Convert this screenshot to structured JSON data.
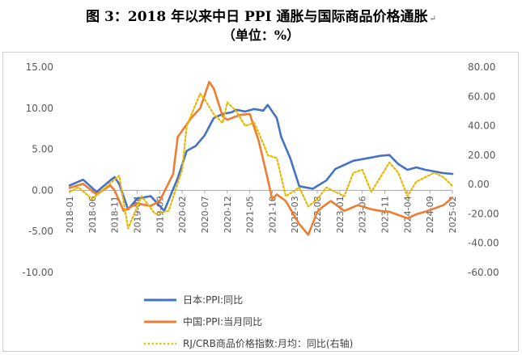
{
  "title": "图 3：2018 年以来中日 PPI 通胀与国际商品价格通胀",
  "subtitle": "（单位：%）",
  "chart_data": {
    "type": "line",
    "title": "图 3：2018 年以来中日 PPI 通胀与国际商品价格通胀",
    "subtitle": "（单位：%）",
    "x_tick_labels": [
      "2018-01",
      "2018-06",
      "2018-11",
      "2019-04",
      "2019-09",
      "2020-02",
      "2020-07",
      "2020-12",
      "2021-05",
      "2021-10",
      "2022-03",
      "2022-08",
      "2023-01",
      "2023-06",
      "2023-11",
      "2024-04",
      "2024-09",
      "2025-02"
    ],
    "y_left": {
      "ylim": [
        -10,
        15
      ],
      "ticks": [
        "15.00",
        "10.00",
        "5.00",
        "0.00",
        "-5.00",
        "-10.00"
      ]
    },
    "y_right": {
      "ylim": [
        -60,
        80
      ],
      "ticks": [
        "80.00",
        "60.00",
        "40.00",
        "20.00",
        "0.00",
        "-20.00",
        "-40.00",
        "-60.00"
      ]
    },
    "grid": false,
    "legend_position": "bottom-left",
    "series": [
      {
        "name": "日本:PPI:同比",
        "axis": "left",
        "color": "#4472C4",
        "x": [
          "2018-01",
          "2018-04",
          "2018-07",
          "2018-10",
          "2018-11",
          "2018-12",
          "2019-02",
          "2019-04",
          "2019-07",
          "2019-10",
          "2020-01",
          "2020-03",
          "2020-05",
          "2020-07",
          "2020-09",
          "2020-11",
          "2021-01",
          "2021-02",
          "2021-04",
          "2021-06",
          "2021-08",
          "2021-09",
          "2021-11",
          "2021-12",
          "2022-02",
          "2022-04",
          "2022-07",
          "2022-10",
          "2022-12",
          "2023-02",
          "2023-04",
          "2023-06",
          "2023-08",
          "2023-10",
          "2023-12",
          "2024-02",
          "2024-04",
          "2024-06",
          "2024-08",
          "2024-10",
          "2024-12",
          "2025-02"
        ],
        "y": [
          0.6,
          1.3,
          -0.2,
          1.2,
          1.6,
          0.8,
          -2.3,
          -1.0,
          -0.7,
          -2.5,
          1.5,
          4.8,
          5.4,
          6.7,
          8.8,
          9.3,
          9.5,
          9.8,
          9.6,
          9.9,
          9.7,
          10.4,
          8.8,
          6.5,
          3.9,
          0.5,
          0.2,
          1.2,
          2.6,
          3.1,
          3.6,
          3.8,
          4.0,
          4.2,
          4.3,
          3.2,
          2.5,
          2.8,
          2.5,
          2.3,
          2.1,
          2.0
        ]
      },
      {
        "name": "中国:PPI:当月同比",
        "axis": "left",
        "color": "#ED7D31",
        "x": [
          "2018-01",
          "2018-04",
          "2018-07",
          "2018-10",
          "2018-11",
          "2019-01",
          "2019-04",
          "2019-07",
          "2019-09",
          "2019-12",
          "2020-01",
          "2020-04",
          "2020-06",
          "2020-08",
          "2020-09",
          "2020-11",
          "2020-12",
          "2021-01",
          "2021-03",
          "2021-05",
          "2021-07",
          "2021-09",
          "2021-10",
          "2021-11",
          "2022-01",
          "2022-04",
          "2022-06",
          "2022-08",
          "2022-09",
          "2022-11",
          "2023-02",
          "2023-05",
          "2023-08",
          "2023-10",
          "2023-12",
          "2024-02",
          "2024-04",
          "2024-06",
          "2024-08",
          "2024-10",
          "2024-12",
          "2025-02"
        ],
        "y": [
          0.3,
          0.8,
          -0.5,
          0.6,
          0.0,
          -2.5,
          -1.6,
          -1.9,
          -1.3,
          2.0,
          6.5,
          8.8,
          10.0,
          13.2,
          12.4,
          9.0,
          8.6,
          8.8,
          9.2,
          9.3,
          6.0,
          1.4,
          -1.1,
          -0.5,
          -1.3,
          -4.1,
          -5.4,
          -2.6,
          -2.1,
          -1.3,
          -2.5,
          -1.8,
          -2.3,
          -2.5,
          -2.6,
          -3.0,
          -3.4,
          -2.9,
          -2.6,
          -2.2,
          -1.8,
          -0.9
        ]
      },
      {
        "name": "RJ/CRB商品价格指数:月均：同比(右轴)",
        "axis": "right",
        "color": "#E6B800",
        "x": [
          "2018-01",
          "2018-03",
          "2018-06",
          "2018-09",
          "2018-12",
          "2019-02",
          "2019-05",
          "2019-08",
          "2019-11",
          "2020-02",
          "2020-03",
          "2020-06",
          "2020-07",
          "2020-09",
          "2020-11",
          "2020-12",
          "2021-02",
          "2021-04",
          "2021-06",
          "2021-08",
          "2021-09",
          "2021-11",
          "2022-01",
          "2022-04",
          "2022-06",
          "2022-08",
          "2022-10",
          "2022-12",
          "2023-02",
          "2023-04",
          "2023-06",
          "2023-08",
          "2023-10",
          "2023-12",
          "2024-02",
          "2024-04",
          "2024-06",
          "2024-08",
          "2024-10",
          "2024-12",
          "2025-02"
        ],
        "y": [
          -5,
          -2,
          -10,
          -2,
          6,
          -30,
          -8,
          -20,
          -18,
          10,
          40,
          62,
          58,
          48,
          42,
          56,
          50,
          40,
          42,
          28,
          20,
          18,
          -8,
          -2,
          -15,
          -10,
          -2,
          -5,
          -8,
          8,
          10,
          -5,
          5,
          15,
          8,
          -8,
          2,
          5,
          8,
          5,
          -1
        ]
      }
    ]
  }
}
